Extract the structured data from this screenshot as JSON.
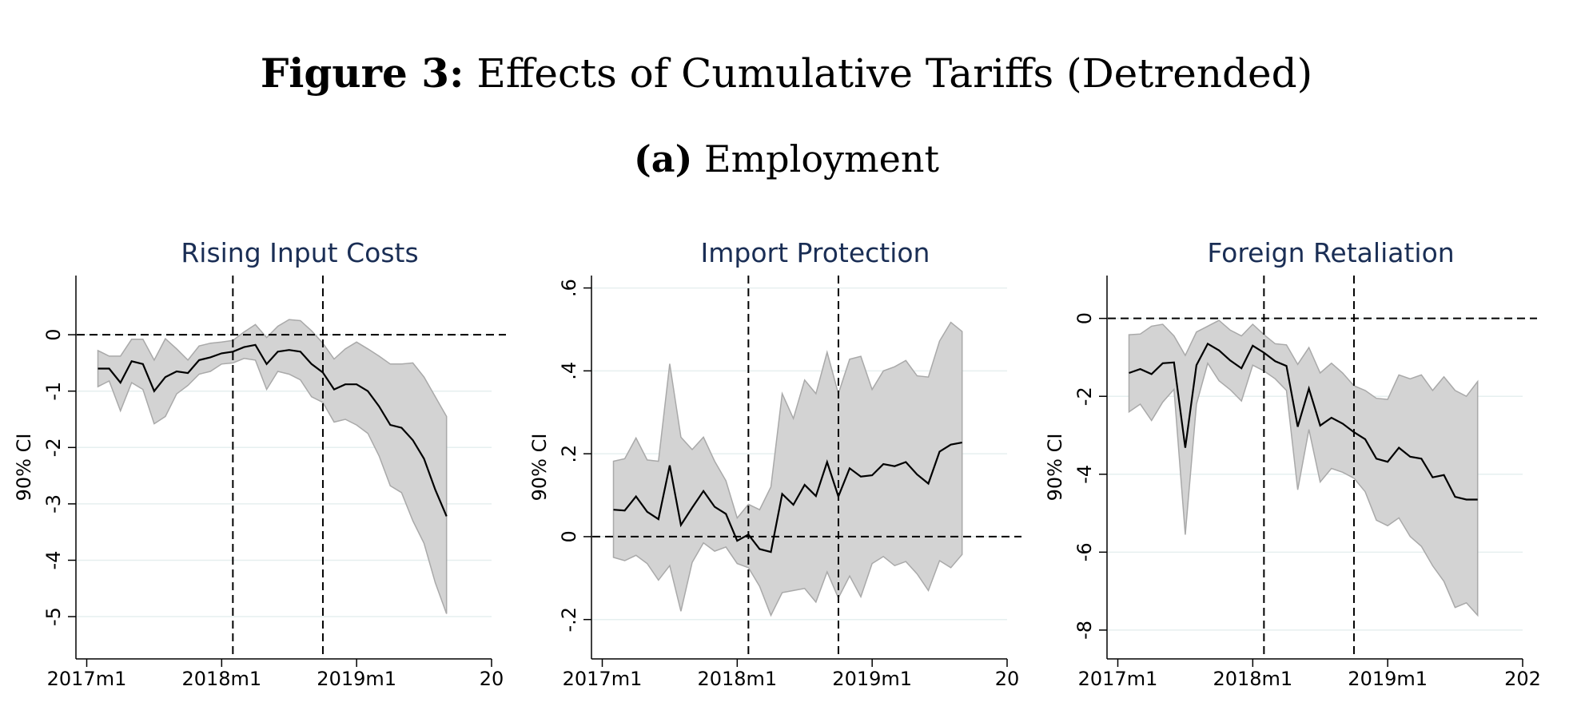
{
  "figure": {
    "label": "Figure 3:",
    "title": "Effects of Cumulative Tariffs (Detrended)",
    "panel_label": "(a)",
    "panel_title": "Employment"
  },
  "colors": {
    "band": "#d3d3d3",
    "band_edge": "#a9a9a9",
    "line": "#000000",
    "title": "#1a2e55",
    "grid": "#e6efef"
  },
  "chart_data": [
    {
      "type": "area",
      "title": "Rising Input Costs",
      "ylabel": "90% CI",
      "xlabel": "",
      "ylim": [
        -5.75,
        1.05
      ],
      "yticks": [
        {
          "v": 0,
          "label": "0"
        },
        {
          "v": -1,
          "label": "-1"
        },
        {
          "v": -2,
          "label": "-2"
        },
        {
          "v": -3,
          "label": "-3"
        },
        {
          "v": -4,
          "label": "-4"
        },
        {
          "v": -5,
          "label": "-5"
        }
      ],
      "xticks": [
        {
          "v": 2017.0,
          "label": "2017m1"
        },
        {
          "v": 2018.0,
          "label": "2018m1"
        },
        {
          "v": 2019.0,
          "label": "2019m1"
        },
        {
          "v": 2020.0,
          "label": "20"
        }
      ],
      "vlines": [
        2018.083,
        2018.75
      ],
      "hline": 0,
      "x_start": 2017.083,
      "x_step": 0.0833333,
      "estimate": [
        -0.6,
        -0.6,
        -0.85,
        -0.47,
        -0.52,
        -1.0,
        -0.75,
        -0.65,
        -0.68,
        -0.45,
        -0.4,
        -0.33,
        -0.3,
        -0.22,
        -0.18,
        -0.52,
        -0.3,
        -0.27,
        -0.3,
        -0.52,
        -0.67,
        -0.97,
        -0.88,
        -0.88,
        -1.0,
        -1.27,
        -1.6,
        -1.65,
        -1.87,
        -2.2,
        -2.75,
        -3.22
      ],
      "lower": [
        -0.92,
        -0.82,
        -1.35,
        -0.85,
        -0.97,
        -1.58,
        -1.45,
        -1.05,
        -0.9,
        -0.7,
        -0.65,
        -0.52,
        -0.5,
        -0.42,
        -0.45,
        -0.97,
        -0.65,
        -0.7,
        -0.8,
        -1.1,
        -1.2,
        -1.55,
        -1.5,
        -1.6,
        -1.75,
        -2.15,
        -2.68,
        -2.8,
        -3.3,
        -3.7,
        -4.4,
        -4.95
      ],
      "upper": [
        -0.28,
        -0.38,
        -0.38,
        -0.08,
        -0.08,
        -0.45,
        -0.07,
        -0.25,
        -0.45,
        -0.2,
        -0.15,
        -0.13,
        -0.1,
        0.05,
        0.18,
        -0.05,
        0.15,
        0.27,
        0.25,
        0.07,
        -0.15,
        -0.43,
        -0.25,
        -0.13,
        -0.25,
        -0.38,
        -0.52,
        -0.52,
        -0.5,
        -0.75,
        -1.1,
        -1.45
      ]
    },
    {
      "type": "area",
      "title": "Import Protection",
      "ylabel": "90% CI",
      "xlabel": "",
      "ylim": [
        -0.295,
        0.63
      ],
      "yticks": [
        {
          "v": -0.2,
          "label": "-.2"
        },
        {
          "v": 0,
          "label": "0"
        },
        {
          "v": 0.2,
          "label": ".2"
        },
        {
          "v": 0.4,
          "label": ".4"
        },
        {
          "v": 0.6,
          "label": ".6"
        }
      ],
      "xticks": [
        {
          "v": 2017.0,
          "label": "2017m1"
        },
        {
          "v": 2018.0,
          "label": "2018m1"
        },
        {
          "v": 2019.0,
          "label": "2019m1"
        },
        {
          "v": 2020.0,
          "label": "20"
        }
      ],
      "vlines": [
        2018.083,
        2018.75
      ],
      "hline": 0,
      "x_start": 2017.083,
      "x_step": 0.0833333,
      "estimate": [
        0.065,
        0.063,
        0.097,
        0.06,
        0.042,
        0.172,
        0.028,
        0.07,
        0.11,
        0.072,
        0.055,
        -0.01,
        0.005,
        -0.03,
        -0.037,
        0.103,
        0.077,
        0.125,
        0.098,
        0.18,
        0.097,
        0.165,
        0.145,
        0.148,
        0.175,
        0.17,
        0.18,
        0.15,
        0.128,
        0.205,
        0.222,
        0.227
      ],
      "lower": [
        -0.05,
        -0.058,
        -0.045,
        -0.065,
        -0.105,
        -0.07,
        -0.18,
        -0.062,
        -0.015,
        -0.035,
        -0.025,
        -0.065,
        -0.075,
        -0.12,
        -0.19,
        -0.135,
        -0.13,
        -0.125,
        -0.158,
        -0.085,
        -0.148,
        -0.095,
        -0.145,
        -0.065,
        -0.048,
        -0.07,
        -0.06,
        -0.09,
        -0.13,
        -0.058,
        -0.075,
        -0.043
      ],
      "upper": [
        0.182,
        0.188,
        0.238,
        0.185,
        0.182,
        0.417,
        0.24,
        0.21,
        0.24,
        0.182,
        0.135,
        0.045,
        0.078,
        0.065,
        0.12,
        0.345,
        0.285,
        0.378,
        0.345,
        0.445,
        0.345,
        0.428,
        0.435,
        0.355,
        0.4,
        0.41,
        0.425,
        0.388,
        0.385,
        0.472,
        0.517,
        0.495
      ]
    },
    {
      "type": "area",
      "title": "Foreign Retaliation",
      "ylabel": "90% CI",
      "xlabel": "",
      "ylim": [
        -8.74,
        1.1
      ],
      "yticks": [
        {
          "v": 0,
          "label": "0"
        },
        {
          "v": -2,
          "label": "-2"
        },
        {
          "v": -4,
          "label": "-4"
        },
        {
          "v": -6,
          "label": "-6"
        },
        {
          "v": -8,
          "label": "-8"
        }
      ],
      "xticks": [
        {
          "v": 2017.0,
          "label": "2017m1"
        },
        {
          "v": 2018.0,
          "label": "2018m1"
        },
        {
          "v": 2019.0,
          "label": "2019m1"
        },
        {
          "v": 2020.0,
          "label": "202"
        }
      ],
      "vlines": [
        2018.083,
        2018.75
      ],
      "hline": 0,
      "x_start": 2017.083,
      "x_step": 0.0833333,
      "estimate": [
        -1.4,
        -1.3,
        -1.43,
        -1.15,
        -1.13,
        -3.32,
        -1.2,
        -0.65,
        -0.82,
        -1.08,
        -1.28,
        -0.7,
        -0.88,
        -1.1,
        -1.22,
        -2.78,
        -1.8,
        -2.75,
        -2.55,
        -2.7,
        -2.92,
        -3.1,
        -3.6,
        -3.68,
        -3.32,
        -3.55,
        -3.6,
        -4.08,
        -4.02,
        -4.58,
        -4.65,
        -4.65
      ],
      "lower": [
        -2.4,
        -2.2,
        -2.62,
        -2.15,
        -1.82,
        -5.55,
        -2.2,
        -1.15,
        -1.6,
        -1.83,
        -2.12,
        -1.2,
        -1.35,
        -1.55,
        -1.85,
        -4.4,
        -2.85,
        -4.2,
        -3.85,
        -3.95,
        -4.1,
        -4.45,
        -5.18,
        -5.32,
        -5.12,
        -5.6,
        -5.85,
        -6.35,
        -6.75,
        -7.42,
        -7.3,
        -7.62
      ],
      "upper": [
        -0.42,
        -0.4,
        -0.2,
        -0.15,
        -0.45,
        -0.95,
        -0.35,
        -0.2,
        -0.05,
        -0.3,
        -0.45,
        -0.15,
        -0.42,
        -0.65,
        -0.68,
        -1.18,
        -0.75,
        -1.4,
        -1.15,
        -1.4,
        -1.73,
        -1.85,
        -2.05,
        -2.08,
        -1.45,
        -1.55,
        -1.45,
        -1.85,
        -1.5,
        -1.85,
        -2.0,
        -1.62
      ]
    }
  ]
}
